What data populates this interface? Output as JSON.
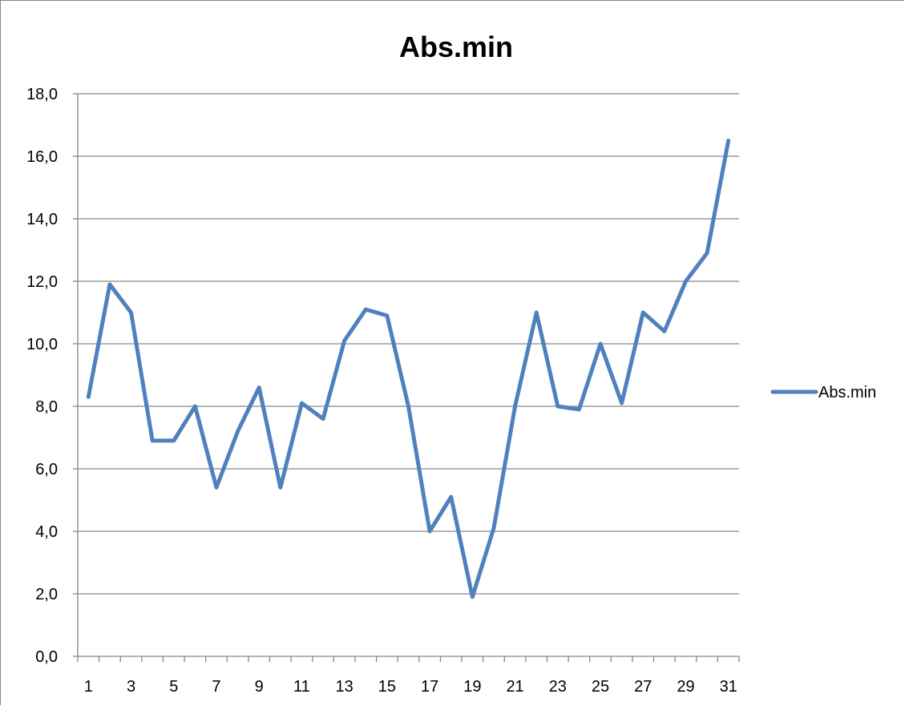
{
  "chart_data": {
    "type": "line",
    "title": "Abs.min",
    "xlabel": "",
    "ylabel": "",
    "x": [
      1,
      2,
      3,
      4,
      5,
      6,
      7,
      8,
      9,
      10,
      11,
      12,
      13,
      14,
      15,
      16,
      17,
      18,
      19,
      20,
      21,
      22,
      23,
      24,
      25,
      26,
      27,
      28,
      29,
      30,
      31
    ],
    "x_tick_labels": [
      "1",
      "3",
      "5",
      "7",
      "9",
      "11",
      "13",
      "15",
      "17",
      "19",
      "21",
      "23",
      "25",
      "27",
      "29",
      "31"
    ],
    "y_tick_labels": [
      "0,0",
      "2,0",
      "4,0",
      "6,0",
      "8,0",
      "10,0",
      "12,0",
      "14,0",
      "16,0",
      "18,0"
    ],
    "ylim": [
      0,
      18
    ],
    "y_tick_step": 2,
    "grid": true,
    "legend_position": "right",
    "series": [
      {
        "name": "Abs.min",
        "color": "#4F81BD",
        "values": [
          8.3,
          11.9,
          11.0,
          6.9,
          6.9,
          8.0,
          5.4,
          7.2,
          8.6,
          5.4,
          8.1,
          7.6,
          10.1,
          11.1,
          10.9,
          8.0,
          4.0,
          5.1,
          1.9,
          4.1,
          8.0,
          11.0,
          8.0,
          7.9,
          10.0,
          8.1,
          11.0,
          10.4,
          12.0,
          12.9,
          16.5
        ]
      }
    ]
  }
}
